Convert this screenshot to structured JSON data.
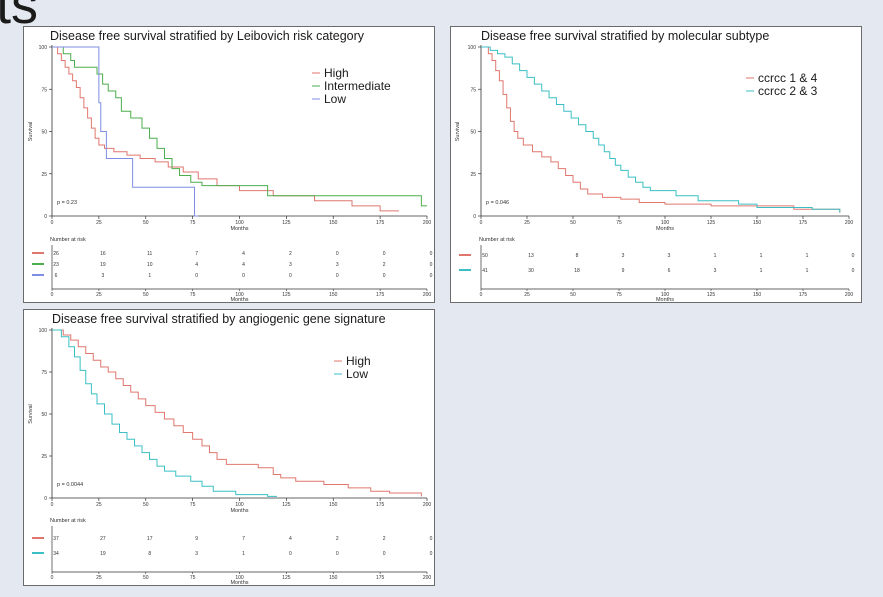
{
  "slide": {
    "title_fragment": "ts"
  },
  "chart_data": [
    {
      "type": "line",
      "title": "Disease free survival stratified by Leibovich risk category",
      "xlabel": "Months",
      "ylabel": "Survival",
      "xlim": [
        0,
        200
      ],
      "ylim": [
        0,
        100
      ],
      "x_ticks": [
        "0",
        "25",
        "50",
        "75",
        "100",
        "125",
        "150",
        "175",
        "200"
      ],
      "y_ticks": [
        "0",
        "25",
        "50",
        "75",
        "100"
      ],
      "p_value": "p = 0.23",
      "legend_position": "top-right",
      "risk_title": "Number at risk",
      "series": [
        {
          "name": "High",
          "color": "#e0776f",
          "points": [
            [
              0,
              100
            ],
            [
              3,
              96
            ],
            [
              5,
              92
            ],
            [
              7,
              88
            ],
            [
              9,
              84
            ],
            [
              11,
              80
            ],
            [
              13,
              76
            ],
            [
              15,
              70
            ],
            [
              17,
              64
            ],
            [
              19,
              58
            ],
            [
              21,
              52
            ],
            [
              23,
              46
            ],
            [
              25,
              42
            ],
            [
              28,
              40
            ],
            [
              33,
              38
            ],
            [
              40,
              36
            ],
            [
              47,
              34
            ],
            [
              55,
              32
            ],
            [
              62,
              29
            ],
            [
              70,
              26
            ],
            [
              78,
              22
            ],
            [
              88,
              18
            ],
            [
              100,
              15
            ],
            [
              118,
              12
            ],
            [
              140,
              9
            ],
            [
              160,
              6
            ],
            [
              175,
              3
            ],
            [
              185,
              3
            ]
          ],
          "risk": [
            "26",
            "16",
            "11",
            "7",
            "4",
            "2",
            "0",
            "0",
            "0"
          ]
        },
        {
          "name": "Intermediate",
          "color": "#4cae4c",
          "points": [
            [
              0,
              100
            ],
            [
              6,
              96
            ],
            [
              10,
              92
            ],
            [
              12,
              88
            ],
            [
              22,
              88
            ],
            [
              24,
              84
            ],
            [
              27,
              78
            ],
            [
              30,
              74
            ],
            [
              34,
              70
            ],
            [
              37,
              62
            ],
            [
              42,
              58
            ],
            [
              48,
              52
            ],
            [
              52,
              46
            ],
            [
              56,
              40
            ],
            [
              60,
              34
            ],
            [
              64,
              28
            ],
            [
              68,
              24
            ],
            [
              74,
              20
            ],
            [
              80,
              18
            ],
            [
              113,
              18
            ],
            [
              115,
              12
            ],
            [
              195,
              12
            ],
            [
              197,
              6
            ],
            [
              200,
              6
            ]
          ],
          "risk": [
            "23",
            "19",
            "10",
            "4",
            "4",
            "3",
            "3",
            "2",
            "0"
          ]
        },
        {
          "name": "Low",
          "color": "#7f8ee3",
          "points": [
            [
              0,
              100
            ],
            [
              22,
              100
            ],
            [
              25,
              67
            ],
            [
              26,
              50
            ],
            [
              29,
              34
            ],
            [
              40,
              34
            ],
            [
              43,
              17
            ],
            [
              74,
              17
            ],
            [
              76,
              0
            ],
            [
              78,
              0
            ]
          ],
          "risk": [
            "6",
            "3",
            "1",
            "0",
            "0",
            "0",
            "0",
            "0",
            "0"
          ]
        }
      ]
    },
    {
      "type": "line",
      "title": "Disease free survival stratified by molecular subtype",
      "xlabel": "Months",
      "ylabel": "Survival",
      "xlim": [
        0,
        200
      ],
      "ylim": [
        0,
        100
      ],
      "x_ticks": [
        "0",
        "25",
        "50",
        "75",
        "100",
        "125",
        "150",
        "175",
        "200"
      ],
      "y_ticks": [
        "0",
        "25",
        "50",
        "75",
        "100"
      ],
      "p_value": "p = 0.046",
      "legend_position": "top-right",
      "risk_title": "Number at risk",
      "series": [
        {
          "name": "ccrcc 1 & 4",
          "color": "#e0776f",
          "points": [
            [
              0,
              100
            ],
            [
              4,
              96
            ],
            [
              6,
              92
            ],
            [
              8,
              86
            ],
            [
              10,
              80
            ],
            [
              12,
              72
            ],
            [
              14,
              64
            ],
            [
              16,
              56
            ],
            [
              18,
              50
            ],
            [
              20,
              46
            ],
            [
              23,
              42
            ],
            [
              28,
              38
            ],
            [
              33,
              35
            ],
            [
              38,
              32
            ],
            [
              42,
              28
            ],
            [
              46,
              24
            ],
            [
              50,
              20
            ],
            [
              54,
              16
            ],
            [
              58,
              13
            ],
            [
              66,
              11
            ],
            [
              76,
              10
            ],
            [
              86,
              8
            ],
            [
              100,
              7
            ],
            [
              125,
              6
            ],
            [
              170,
              4
            ],
            [
              195,
              2
            ]
          ],
          "risk": [
            "50",
            "13",
            "8",
            "3",
            "3",
            "1",
            "1",
            "1",
            "0"
          ]
        },
        {
          "name": "ccrcc 2 & 3",
          "color": "#3bbfc4",
          "points": [
            [
              0,
              100
            ],
            [
              5,
              98
            ],
            [
              9,
              96
            ],
            [
              13,
              94
            ],
            [
              17,
              90
            ],
            [
              21,
              86
            ],
            [
              25,
              82
            ],
            [
              29,
              78
            ],
            [
              33,
              74
            ],
            [
              37,
              70
            ],
            [
              41,
              66
            ],
            [
              45,
              62
            ],
            [
              49,
              58
            ],
            [
              53,
              54
            ],
            [
              57,
              50
            ],
            [
              61,
              46
            ],
            [
              64,
              42
            ],
            [
              67,
              38
            ],
            [
              70,
              34
            ],
            [
              73,
              30
            ],
            [
              76,
              27
            ],
            [
              80,
              23
            ],
            [
              84,
              20
            ],
            [
              88,
              17
            ],
            [
              92,
              15
            ],
            [
              106,
              12
            ],
            [
              118,
              9
            ],
            [
              140,
              7
            ],
            [
              150,
              5
            ],
            [
              180,
              4
            ],
            [
              195,
              2
            ]
          ],
          "risk": [
            "41",
            "30",
            "18",
            "9",
            "6",
            "3",
            "1",
            "1",
            "0"
          ]
        }
      ]
    },
    {
      "type": "line",
      "title": "Disease free survival stratified by angiogenic gene signature",
      "xlabel": "Months",
      "ylabel": "Survival",
      "xlim": [
        0,
        200
      ],
      "ylim": [
        0,
        100
      ],
      "x_ticks": [
        "0",
        "25",
        "50",
        "75",
        "100",
        "125",
        "150",
        "175",
        "200"
      ],
      "y_ticks": [
        "0",
        "25",
        "50",
        "75",
        "100"
      ],
      "p_value": "p = 0.0044",
      "legend_position": "top-right",
      "risk_title": "Number at risk",
      "series": [
        {
          "name": "High",
          "color": "#e0776f",
          "points": [
            [
              0,
              100
            ],
            [
              6,
              97
            ],
            [
              10,
              94
            ],
            [
              14,
              90
            ],
            [
              18,
              86
            ],
            [
              22,
              82
            ],
            [
              26,
              78
            ],
            [
              30,
              75
            ],
            [
              34,
              71
            ],
            [
              38,
              67
            ],
            [
              42,
              63
            ],
            [
              46,
              59
            ],
            [
              50,
              55
            ],
            [
              55,
              51
            ],
            [
              60,
              47
            ],
            [
              65,
              43
            ],
            [
              70,
              39
            ],
            [
              75,
              35
            ],
            [
              80,
              31
            ],
            [
              84,
              27
            ],
            [
              88,
              23
            ],
            [
              93,
              20
            ],
            [
              110,
              18
            ],
            [
              118,
              14
            ],
            [
              122,
              12
            ],
            [
              130,
              10
            ],
            [
              145,
              8
            ],
            [
              158,
              6
            ],
            [
              170,
              4
            ],
            [
              180,
              3
            ],
            [
              197,
              1
            ]
          ],
          "risk": [
            "37",
            "27",
            "17",
            "9",
            "7",
            "4",
            "2",
            "2",
            "0"
          ]
        },
        {
          "name": "Low",
          "color": "#3bbfc4",
          "points": [
            [
              0,
              100
            ],
            [
              5,
              96
            ],
            [
              9,
              90
            ],
            [
              12,
              84
            ],
            [
              15,
              76
            ],
            [
              18,
              68
            ],
            [
              21,
              62
            ],
            [
              24,
              56
            ],
            [
              28,
              50
            ],
            [
              32,
              44
            ],
            [
              36,
              39
            ],
            [
              40,
              35
            ],
            [
              44,
              31
            ],
            [
              48,
              27
            ],
            [
              52,
              23
            ],
            [
              56,
              19
            ],
            [
              60,
              16
            ],
            [
              66,
              13
            ],
            [
              74,
              10
            ],
            [
              80,
              7
            ],
            [
              86,
              4
            ],
            [
              98,
              2
            ],
            [
              115,
              1
            ],
            [
              120,
              1
            ]
          ],
          "risk": [
            "34",
            "19",
            "8",
            "3",
            "1",
            "0",
            "0",
            "0",
            "0"
          ]
        }
      ]
    }
  ]
}
